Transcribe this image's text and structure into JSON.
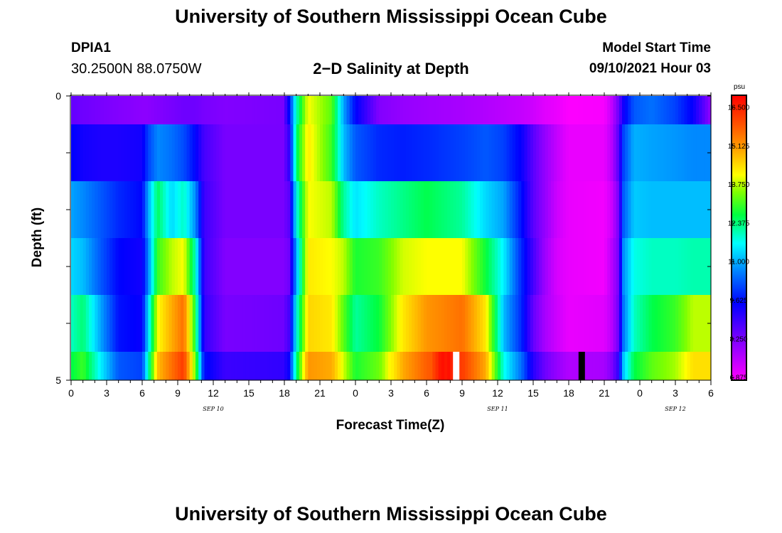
{
  "header": {
    "title": "University of Southern Mississippi Ocean Cube",
    "station": "DPIA1",
    "coords": "30.2500N  88.0750W",
    "subtitle": "2−D Salinity at Depth",
    "model_start_label": "Model Start Time",
    "model_start_value": "09/10/2021 Hour 03"
  },
  "footer": {
    "title": "University of Southern Mississippi Ocean Cube"
  },
  "chart_data": {
    "type": "heatmap",
    "title": "2-D Salinity at Depth",
    "xlabel": "Forecast Time(Z)",
    "ylabel": "Depth (ft)",
    "units": "psu",
    "x_range": [
      0,
      54
    ],
    "y_range": [
      0,
      5
    ],
    "x_tick_labels": [
      "0",
      "3",
      "6",
      "9",
      "12",
      "15",
      "18",
      "21",
      "0",
      "3",
      "6",
      "9",
      "12",
      "15",
      "18",
      "21",
      "0",
      "3",
      "6"
    ],
    "y_tick_labels": [
      "0",
      "5"
    ],
    "date_labels": [
      {
        "text": "SEP 10",
        "hour": 12
      },
      {
        "text": "SEP 11",
        "hour": 36
      },
      {
        "text": "SEP 12",
        "hour": 51
      }
    ],
    "colorbar": {
      "min": 6.875,
      "max": 16.5,
      "labels": [
        "16.500",
        "15.125",
        "13.750",
        "12.375",
        "11.000",
        "9.625",
        "8.250",
        "6.875"
      ]
    },
    "depth_bands": [
      0,
      1,
      2,
      3,
      4
    ],
    "band_keys": [
      {
        "hour": 0,
        "values": [
          8.5,
          9.5,
          10.8,
          11.2,
          11.8
        ]
      },
      {
        "hour": 1,
        "values": [
          8.4,
          9.3,
          10.6,
          11.0,
          12.2
        ]
      },
      {
        "hour": 2.5,
        "values": [
          8.3,
          9.2,
          10.2,
          10.2,
          10.8
        ]
      },
      {
        "hour": 4,
        "values": [
          8.2,
          9.2,
          9.8,
          9.5,
          9.6
        ]
      },
      {
        "hour": 6,
        "values": [
          8.1,
          9.3,
          9.5,
          9.3,
          9.4
        ]
      },
      {
        "hour": 6.5,
        "values": [
          8.1,
          10.0,
          10.8,
          10.5,
          11.2
        ]
      },
      {
        "hour": 7.3,
        "values": [
          8.2,
          10.6,
          12.3,
          12.8,
          13.8
        ]
      },
      {
        "hour": 8.5,
        "values": [
          8.3,
          10.4,
          11.2,
          13.5,
          14.6
        ]
      },
      {
        "hour": 9.5,
        "values": [
          8.4,
          10.1,
          11.8,
          13.8,
          15.2
        ]
      },
      {
        "hour": 10.5,
        "values": [
          8.4,
          9.5,
          10.6,
          11.8,
          12.5
        ]
      },
      {
        "hour": 11.2,
        "values": [
          8.3,
          8.8,
          8.9,
          8.9,
          9.0
        ]
      },
      {
        "hour": 13,
        "values": [
          8.2,
          8.3,
          8.3,
          8.2,
          8.3
        ]
      },
      {
        "hour": 17.9,
        "values": [
          8.3,
          8.3,
          8.3,
          8.2,
          8.4
        ]
      },
      {
        "hour": 18.4,
        "values": [
          9.5,
          9.0,
          8.6,
          8.4,
          8.8
        ]
      },
      {
        "hour": 19,
        "values": [
          11.8,
          12.2,
          11.5,
          10.8,
          11.5
        ]
      },
      {
        "hour": 20,
        "values": [
          13.8,
          14.0,
          13.8,
          14.0,
          14.2
        ]
      },
      {
        "hour": 22,
        "values": [
          13.0,
          12.8,
          13.5,
          13.8,
          14.0
        ]
      },
      {
        "hour": 23,
        "values": [
          10.8,
          11.0,
          12.0,
          13.5,
          13.0
        ]
      },
      {
        "hour": 24,
        "values": [
          9.5,
          10.2,
          11.3,
          12.6,
          12.0
        ]
      },
      {
        "hour": 26,
        "values": [
          8.2,
          9.8,
          11.8,
          12.8,
          12.5
        ]
      },
      {
        "hour": 28,
        "values": [
          8.0,
          9.7,
          12.1,
          13.6,
          14.0
        ]
      },
      {
        "hour": 30,
        "values": [
          7.9,
          9.8,
          12.4,
          13.8,
          14.8
        ]
      },
      {
        "hour": 33,
        "values": [
          7.8,
          10.0,
          12.0,
          13.8,
          15.2
        ]
      },
      {
        "hour": 35,
        "values": [
          7.7,
          10.2,
          11.2,
          12.5,
          14.0
        ]
      },
      {
        "hour": 36.5,
        "values": [
          7.6,
          10.0,
          10.8,
          11.4,
          11.0
        ]
      },
      {
        "hour": 38,
        "values": [
          7.5,
          9.4,
          9.6,
          9.8,
          9.8
        ]
      },
      {
        "hour": 39,
        "values": [
          7.4,
          8.6,
          8.6,
          8.8,
          8.5
        ]
      },
      {
        "hour": 40,
        "values": [
          7.2,
          8.0,
          8.0,
          7.9,
          7.8
        ]
      },
      {
        "hour": 41,
        "values": [
          7.1,
          7.5,
          7.4,
          7.3,
          7.4
        ]
      },
      {
        "hour": 42,
        "values": [
          6.9,
          7.1,
          7.1,
          7.1,
          7.1
        ]
      },
      {
        "hour": 45,
        "values": [
          6.95,
          7.1,
          7.0,
          7.0,
          7.2
        ]
      },
      {
        "hour": 45.6,
        "values": [
          7.5,
          7.6,
          7.4,
          7.6,
          7.6
        ]
      },
      {
        "hour": 46.2,
        "values": [
          8.4,
          8.6,
          8.3,
          8.3,
          8.4
        ]
      },
      {
        "hour": 46.6,
        "values": [
          9.3,
          10.0,
          10.2,
          10.6,
          10.4
        ]
      },
      {
        "hour": 47.5,
        "values": [
          10.2,
          10.9,
          11.1,
          11.6,
          11.8
        ]
      },
      {
        "hour": 49,
        "values": [
          10.4,
          10.8,
          11.0,
          11.8,
          12.4
        ]
      },
      {
        "hour": 51,
        "values": [
          10.0,
          10.7,
          11.0,
          11.8,
          12.8
        ]
      },
      {
        "hour": 52.5,
        "values": [
          9.4,
          10.6,
          11.0,
          11.9,
          13.5
        ]
      },
      {
        "hour": 53.5,
        "values": [
          8.5,
          10.6,
          11.0,
          11.9,
          13.5
        ]
      },
      {
        "hour": 54,
        "values": [
          8.0,
          10.6,
          11.0,
          11.9,
          13.5
        ]
      }
    ],
    "bottom_band_bumps": [
      {
        "hour": 27,
        "value": 13.4
      },
      {
        "hour": 31.3,
        "value": 15.8
      },
      {
        "hour": 31.8,
        "value": 15.8
      },
      {
        "hour": 32.5,
        "value": 15.2
      }
    ],
    "markers": [
      {
        "hour": 32.5,
        "color": "#ffffff"
      },
      {
        "hour": 43.1,
        "color": "#000000"
      }
    ]
  }
}
